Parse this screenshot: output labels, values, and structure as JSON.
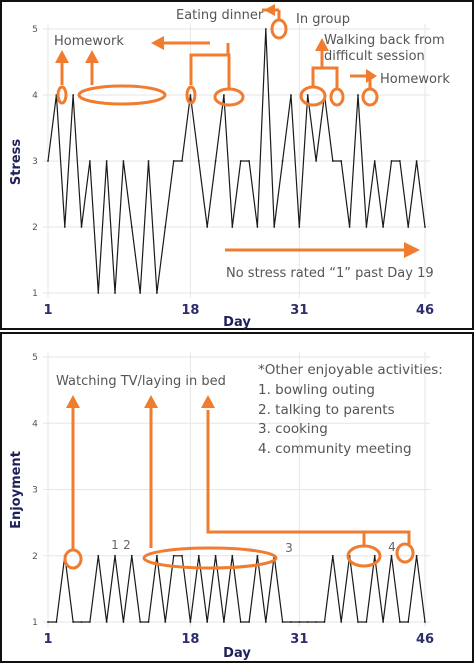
{
  "chart_data": [
    {
      "type": "line",
      "ylabel": "Stress",
      "xlabel": "Day",
      "ylim": [
        1,
        5
      ],
      "yticks": [
        "1",
        "2",
        "3",
        "4",
        "5"
      ],
      "xticks": [
        "1",
        "18",
        "31",
        "46"
      ],
      "grid": true,
      "x": [
        1,
        2,
        3,
        4,
        5,
        6,
        7,
        8,
        9,
        10,
        11,
        12,
        13,
        14,
        15,
        16,
        17,
        18,
        19,
        20,
        21,
        22,
        23,
        24,
        25,
        26,
        27,
        28,
        29,
        30,
        31,
        32,
        33,
        34,
        35,
        36,
        37,
        38,
        39,
        40,
        41,
        42,
        43,
        44,
        45,
        46
      ],
      "values": [
        3,
        4,
        2,
        4,
        2,
        3,
        1,
        3,
        1,
        3,
        2,
        1,
        3,
        1,
        2,
        3,
        3,
        4,
        3,
        2,
        3,
        4,
        2,
        3,
        3,
        2,
        5,
        2,
        3,
        4,
        2,
        4,
        3,
        4,
        3,
        3,
        2,
        4,
        2,
        3,
        2,
        3,
        3,
        2,
        3,
        2
      ],
      "annotations": {
        "homework_left": "Homework",
        "eating_dinner": "Eating dinner",
        "in_group": "In group",
        "walking_back": [
          "Walking back from",
          "difficult session"
        ],
        "homework_right": "Homework",
        "no_stress": "No stress rated “1” past Day 19"
      }
    },
    {
      "type": "line",
      "ylabel": "Enjoyment",
      "xlabel": "Day",
      "ylim": [
        1,
        5
      ],
      "yticks": [
        "1",
        "2",
        "3",
        "4",
        "5"
      ],
      "xticks": [
        "1",
        "18",
        "31",
        "46"
      ],
      "grid": true,
      "x": [
        1,
        2,
        3,
        4,
        5,
        6,
        7,
        8,
        9,
        10,
        11,
        12,
        13,
        14,
        15,
        16,
        17,
        18,
        19,
        20,
        21,
        22,
        23,
        24,
        25,
        26,
        27,
        28,
        29,
        30,
        31,
        32,
        33,
        34,
        35,
        36,
        37,
        38,
        39,
        40,
        41,
        42,
        43,
        44,
        45,
        46
      ],
      "values": [
        1,
        1,
        2,
        1,
        1,
        1,
        2,
        1,
        2,
        1,
        2,
        1,
        1,
        2,
        1,
        2,
        2,
        1,
        2,
        1,
        2,
        1,
        2,
        1,
        1,
        2,
        1,
        2,
        1,
        1,
        1,
        1,
        1,
        1,
        2,
        1,
        2,
        1,
        1,
        2,
        1,
        2,
        1,
        1,
        2,
        1
      ],
      "annotations": {
        "watching_tv": "Watching TV/laying in bed",
        "other_title": "*Other enjoyable activities:",
        "other_items": [
          "1.  bowling outing",
          "2.  talking to parents",
          "3.  cooking",
          "4.  community meeting"
        ],
        "marks": [
          "1",
          "2",
          "3",
          "4"
        ]
      }
    }
  ],
  "colors": {
    "accent": "#f07c30",
    "line": "#1a1a1a",
    "axis_text": "#2d2d6e",
    "grid": "#e6e6e6"
  }
}
